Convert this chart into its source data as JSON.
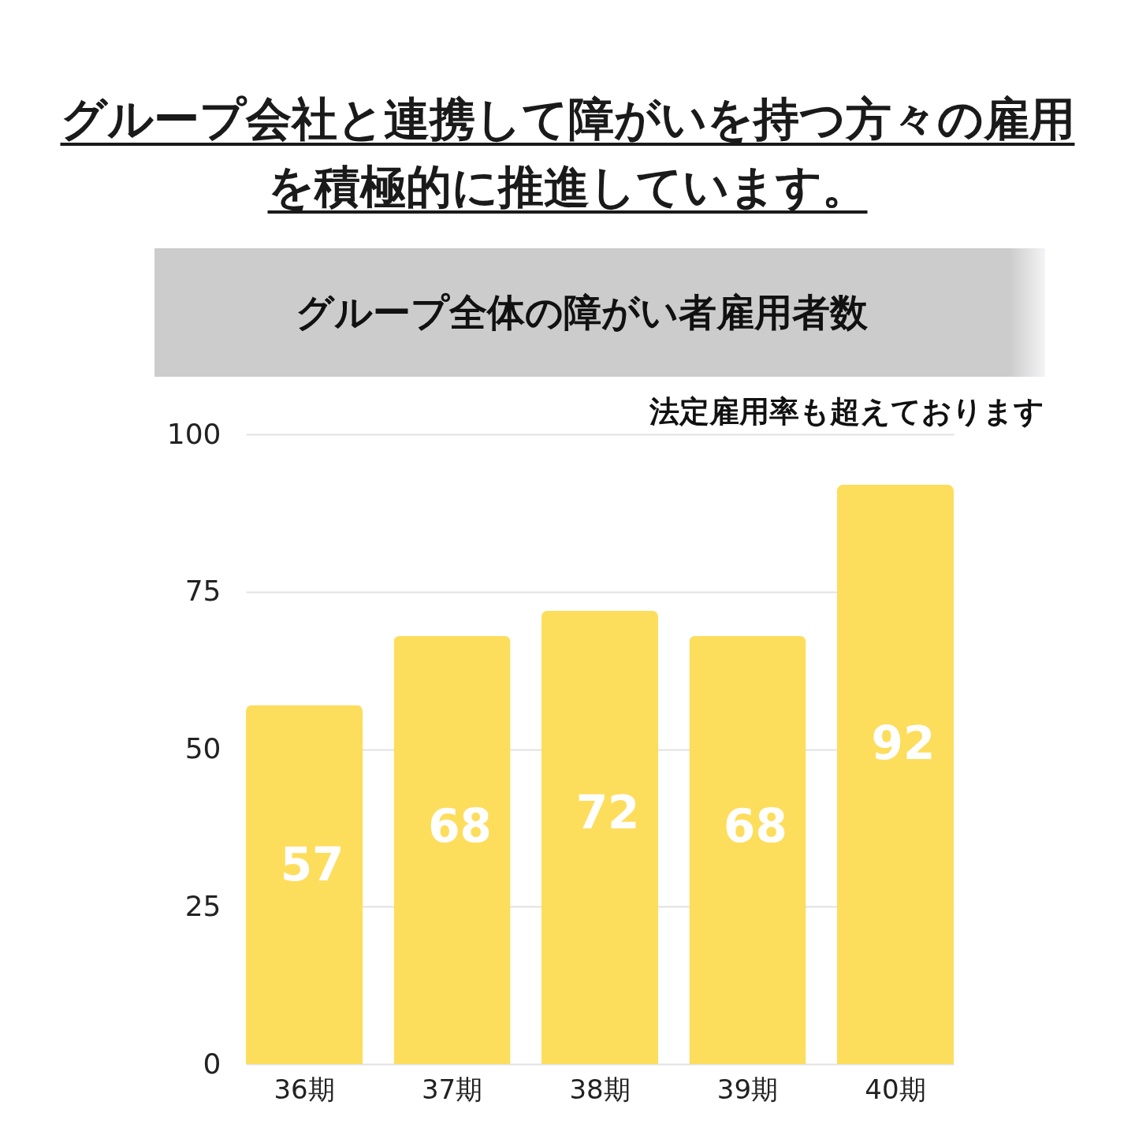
{
  "chart_data": {
    "type": "bar",
    "title": "グループ会社と連携して障がいを持つ方々の雇用を積極的に推進しています。",
    "subtitle": "グループ全体の障がい者雇用者数",
    "annotations": [
      "法定雇用率も超えております"
    ],
    "categories": [
      "36期",
      "37期",
      "38期",
      "39期",
      "40期"
    ],
    "values": [
      57,
      68,
      72,
      68,
      92
    ],
    "color": "#fddd5c",
    "ylim": [
      0,
      100
    ],
    "yticks": [
      0,
      25,
      50,
      75,
      100
    ],
    "grid": "y",
    "data_labels": true
  }
}
